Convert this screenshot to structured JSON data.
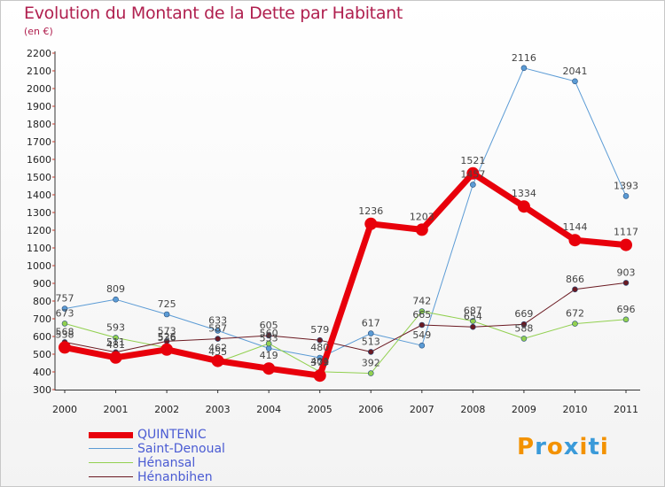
{
  "title": "Evolution du Montant de la Dette par Habitant",
  "unit": "(en €)",
  "logo": {
    "letters": [
      "P",
      "r",
      "o",
      "x",
      "i",
      "t",
      "i"
    ],
    "colors": [
      "#f39200",
      "#3a9ad9",
      "#f39200",
      "#3a9ad9",
      "#f39200",
      "#3a9ad9",
      "#f39200"
    ]
  },
  "chart_data": {
    "type": "line",
    "x": [
      "2000",
      "2001",
      "2002",
      "2003",
      "2004",
      "2005",
      "2006",
      "2007",
      "2008",
      "2009",
      "2010",
      "2011"
    ],
    "ylim": [
      300,
      2200
    ],
    "yticks": [
      300,
      400,
      500,
      600,
      700,
      800,
      900,
      1000,
      1100,
      1200,
      1300,
      1400,
      1500,
      1600,
      1700,
      1800,
      1900,
      2000,
      2100,
      2200
    ],
    "grid": false,
    "legend_position": "bottom-left",
    "series": [
      {
        "name": "QUINTENIC",
        "color": "#e8000b",
        "width": 7,
        "marker": 7,
        "values": [
          538,
          481,
          526,
          462,
          419,
          379,
          1236,
          1203,
          1521,
          1334,
          1144,
          1117
        ],
        "labels": [
          "538",
          "481",
          "526",
          "462",
          "419",
          "379",
          "1236",
          "1203",
          "1521",
          "1334",
          "1144",
          "1117"
        ]
      },
      {
        "name": "Saint-Denoual",
        "color": "#5b9bd5",
        "width": 1,
        "marker": 3,
        "values": [
          757,
          809,
          725,
          633,
          533,
          480,
          617,
          549,
          1457,
          2116,
          2041,
          1393
        ],
        "labels": [
          "757",
          "809",
          "725",
          "633",
          "533",
          "480",
          "617",
          "549",
          "1457",
          "2116",
          "2041",
          "1393"
        ]
      },
      {
        "name": "Hénansal",
        "color": "#92d050",
        "width": 1,
        "marker": 3,
        "values": [
          673,
          593,
          536,
          455,
          560,
          401,
          392,
          742,
          687,
          588,
          672,
          696
        ],
        "labels": [
          "673",
          "593",
          "536",
          "455",
          "560",
          "401",
          "392",
          "742",
          "687",
          "588",
          "672",
          "696"
        ]
      },
      {
        "name": "Hénanbihen",
        "color": "#6b1a22",
        "width": 1,
        "marker": 3,
        "values": [
          568,
          511,
          573,
          587,
          605,
          579,
          513,
          665,
          654,
          669,
          866,
          903
        ],
        "labels": [
          "568",
          "511",
          "573",
          "587",
          "605",
          "579",
          "513",
          "665",
          "654",
          "669",
          "866",
          "903"
        ]
      }
    ]
  }
}
